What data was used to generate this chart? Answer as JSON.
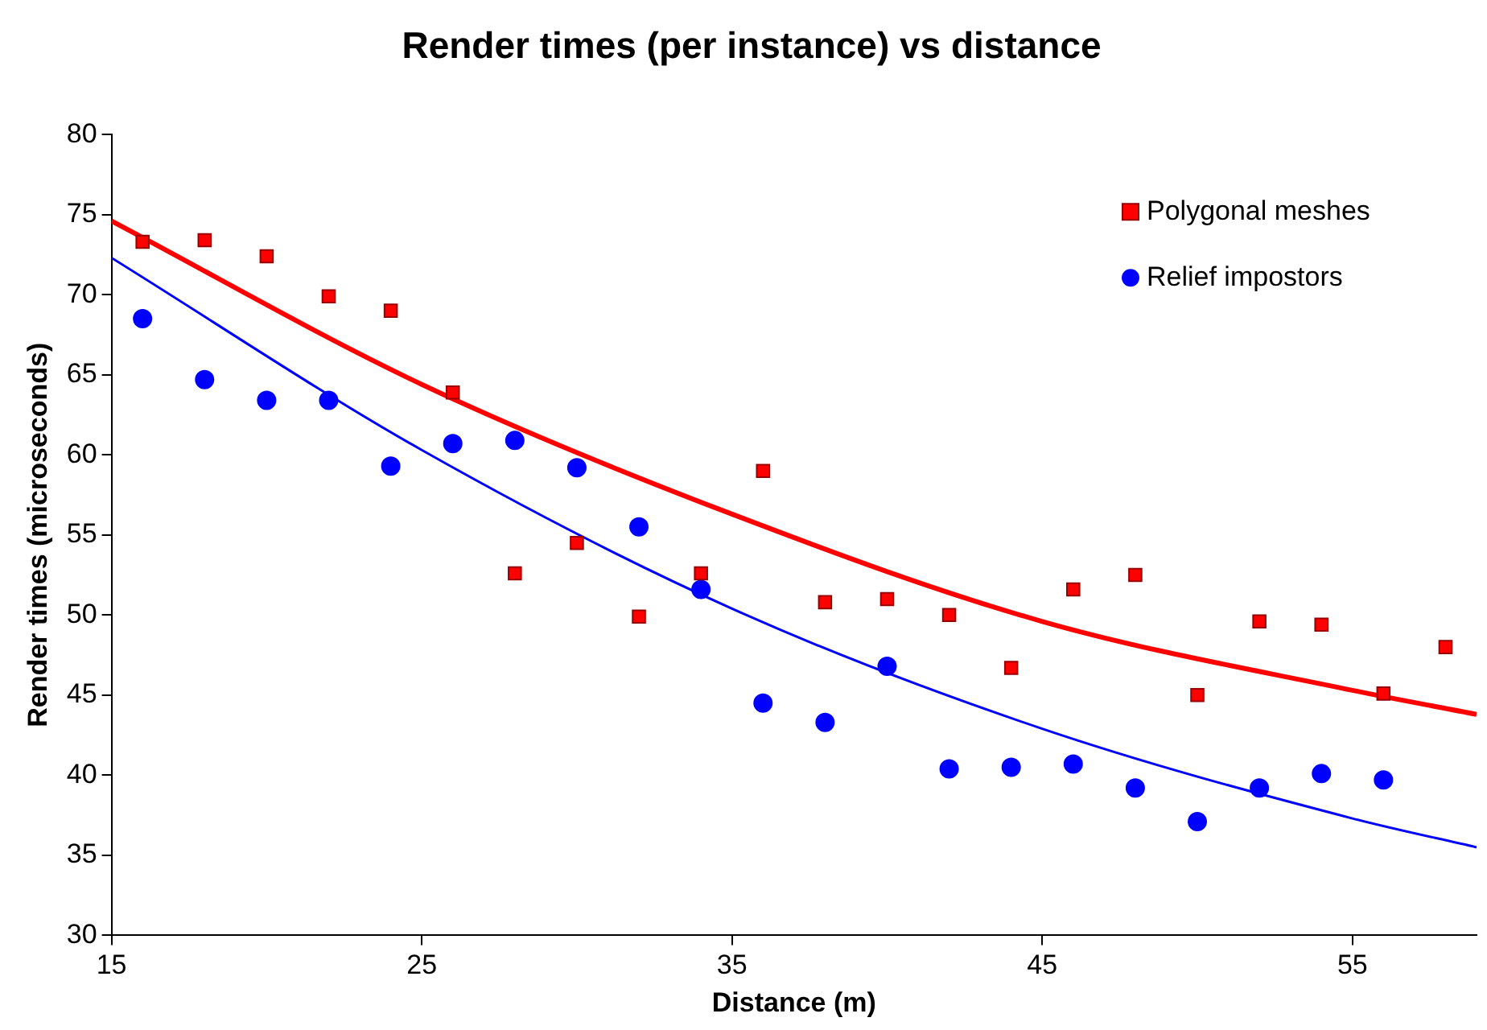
{
  "chart_data": {
    "type": "scatter",
    "title": "Render times (per instance) vs distance",
    "xlabel": "Distance (m)",
    "ylabel": "Render times (microseconds)",
    "xlim": [
      15,
      59
    ],
    "xticks": [
      15,
      25,
      35,
      45,
      55
    ],
    "ylim": [
      30,
      80
    ],
    "yticks": [
      30,
      35,
      40,
      45,
      50,
      55,
      60,
      65,
      70,
      75,
      80
    ],
    "grid": false,
    "legend": "top right",
    "series": [
      {
        "name": "Polygonal meshes",
        "color": "#ff0000",
        "marker": "square",
        "x": [
          16,
          18,
          20,
          22,
          24,
          26,
          28,
          30,
          32,
          34,
          36,
          38,
          40,
          42,
          44,
          46,
          48,
          50,
          52,
          54,
          56,
          58
        ],
        "values": [
          73.3,
          73.4,
          72.4,
          69.9,
          69.0,
          63.9,
          52.6,
          54.5,
          49.9,
          52.6,
          59.0,
          50.8,
          51.0,
          50.0,
          46.7,
          51.6,
          52.5,
          45.0,
          49.6,
          49.4,
          45.1,
          48.0
        ]
      },
      {
        "name": "Relief impostors",
        "color": "#0000ff",
        "marker": "circle",
        "x": [
          16,
          18,
          20,
          22,
          24,
          26,
          28,
          30,
          32,
          34,
          36,
          38,
          40,
          42,
          44,
          46,
          48,
          50,
          52,
          54,
          56
        ],
        "values": [
          68.5,
          64.7,
          63.4,
          63.4,
          59.3,
          60.7,
          60.9,
          59.2,
          55.5,
          51.6,
          44.5,
          43.3,
          46.8,
          40.4,
          40.5,
          40.7,
          39.2,
          37.1,
          39.2,
          40.1,
          39.7
        ]
      },
      {
        "type": "line",
        "color": "#ff0000",
        "marker": "none",
        "x": [
          15,
          25,
          35,
          45,
          55,
          59
        ],
        "values": [
          74.6,
          64.4,
          56.3,
          49.6,
          45.3,
          43.8
        ]
      },
      {
        "type": "line",
        "color": "#0000ff",
        "marker": "none",
        "x": [
          15,
          25,
          35,
          45,
          55,
          59
        ],
        "values": [
          72.3,
          60.3,
          50.4,
          42.9,
          37.3,
          35.5
        ]
      }
    ]
  }
}
